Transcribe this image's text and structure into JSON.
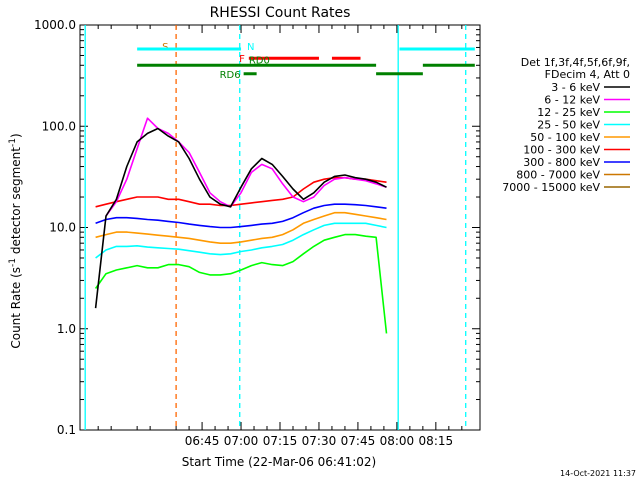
{
  "chart_data": {
    "type": "line",
    "title": "RHESSI Count Rates",
    "xlabel": "Start Time (22-Mar-06 06:41:02)",
    "ylabel_prefix": "Count Rate (s",
    "ylabel_sup": "-1",
    "ylabel_mid": " detector segment",
    "ylabel_sup2": "-1",
    "ylabel_suffix": ")",
    "yscale": "log",
    "ylim": [
      0.1,
      1000.0
    ],
    "xlim_minutes": [
      -4.5,
      19.0
    ],
    "x_ticks": [
      {
        "label": "06:45",
        "min": -15
      },
      {
        "label": "07:00",
        "min": 0
      },
      {
        "label": "07:15",
        "min": 15
      },
      {
        "label": "07:30",
        "min": 30
      },
      {
        "label": "07:45",
        "min": 45
      },
      {
        "label": "08:00",
        "min": 60
      },
      {
        "label": "08:15",
        "min": 75
      }
    ],
    "y_ticks": [
      {
        "label": "1000.0",
        "v": 1000
      },
      {
        "label": "100.0",
        "v": 100
      },
      {
        "label": "10.0",
        "v": 10
      },
      {
        "label": "1.0",
        "v": 1
      },
      {
        "label": "0.1",
        "v": 0.1
      }
    ],
    "legend_header": [
      "Det 1f,3f,4f,5f,6f,9f,",
      "FDecim 4, Att 0"
    ],
    "series": [
      {
        "name": "3 - 6 keV",
        "color": "#000000",
        "x": [
          -56,
          -52,
          -48,
          -44,
          -40,
          -36,
          -32,
          -28,
          -24,
          -20,
          -16,
          -12,
          -8,
          -4,
          0,
          4,
          8,
          12,
          16,
          20,
          24,
          28,
          32,
          36,
          40,
          44,
          48,
          52,
          56
        ],
        "values": [
          1.6,
          13,
          19,
          40,
          70,
          85,
          95,
          80,
          70,
          48,
          30,
          20,
          17,
          16,
          25,
          38,
          48,
          42,
          32,
          24,
          19,
          22,
          28,
          32,
          33,
          31,
          30,
          28,
          25
        ]
      },
      {
        "name": "6 - 12 keV",
        "color": "#ff00ff",
        "x": [
          -52,
          -48,
          -44,
          -40,
          -36,
          -32,
          -28,
          -24,
          -20,
          -16,
          -12,
          -8,
          -4,
          0,
          4,
          8,
          12,
          16,
          20,
          24,
          28,
          32,
          36,
          40,
          44,
          48,
          52,
          56
        ],
        "values": [
          13,
          18,
          30,
          60,
          120,
          95,
          85,
          70,
          55,
          35,
          22,
          18,
          16,
          22,
          35,
          42,
          38,
          27,
          20,
          18,
          20,
          26,
          30,
          31,
          30,
          29,
          27,
          25
        ]
      },
      {
        "name": "12 - 25 keV",
        "color": "#00ff00",
        "x": [
          -56,
          -52,
          -48,
          -44,
          -40,
          -36,
          -32,
          -28,
          -24,
          -20,
          -16,
          -12,
          -8,
          -4,
          0,
          4,
          8,
          12,
          16,
          20,
          24,
          28,
          32,
          36,
          40,
          44,
          48,
          52,
          56
        ],
        "values": [
          2.5,
          3.5,
          3.8,
          4.0,
          4.2,
          4.0,
          4.0,
          4.3,
          4.3,
          4.1,
          3.6,
          3.4,
          3.4,
          3.5,
          3.8,
          4.2,
          4.5,
          4.3,
          4.2,
          4.6,
          5.5,
          6.5,
          7.5,
          8.0,
          8.5,
          8.5,
          8.2,
          8.0,
          0.9
        ]
      },
      {
        "name": "25 - 50 keV",
        "color": "#00ffff",
        "x": [
          -56,
          -52,
          -48,
          -44,
          -40,
          -36,
          -32,
          -28,
          -24,
          -20,
          -16,
          -12,
          -8,
          -4,
          0,
          4,
          8,
          12,
          16,
          20,
          24,
          28,
          32,
          36,
          40,
          44,
          48,
          52,
          56
        ],
        "values": [
          5.0,
          6.0,
          6.5,
          6.5,
          6.6,
          6.4,
          6.3,
          6.2,
          6.1,
          5.9,
          5.7,
          5.5,
          5.4,
          5.5,
          5.8,
          6.0,
          6.3,
          6.5,
          6.8,
          7.5,
          8.5,
          9.5,
          10.5,
          11,
          11,
          11,
          11,
          10.5,
          10
        ]
      },
      {
        "name": "50 - 100 keV",
        "color": "#ff9900",
        "x": [
          -56,
          -52,
          -48,
          -44,
          -40,
          -36,
          -32,
          -28,
          -24,
          -20,
          -16,
          -12,
          -8,
          -4,
          0,
          4,
          8,
          12,
          16,
          20,
          24,
          28,
          32,
          36,
          40,
          44,
          48,
          52,
          56
        ],
        "values": [
          8.0,
          8.5,
          9.0,
          9.0,
          8.8,
          8.6,
          8.4,
          8.2,
          8.0,
          7.8,
          7.5,
          7.2,
          7.0,
          7.0,
          7.2,
          7.5,
          7.8,
          8.0,
          8.5,
          9.5,
          11,
          12,
          13,
          14,
          14,
          13.5,
          13,
          12.5,
          12
        ]
      },
      {
        "name": "100 - 300 keV",
        "color": "#ff0000",
        "x": [
          -56,
          -52,
          -48,
          -44,
          -40,
          -36,
          -32,
          -28,
          -24,
          -20,
          -16,
          -12,
          -8,
          -4,
          0,
          4,
          8,
          12,
          16,
          20,
          24,
          28,
          32,
          36,
          40,
          44,
          48,
          52,
          56
        ],
        "values": [
          16,
          17,
          18,
          19,
          20,
          20,
          20,
          19,
          19,
          18,
          17,
          17,
          16.5,
          16.5,
          17,
          17.5,
          18,
          18.5,
          19,
          20,
          24,
          28,
          30,
          31,
          31,
          30,
          30,
          29,
          28
        ]
      },
      {
        "name": "300 - 800 keV",
        "color": "#0000ff",
        "x": [
          -56,
          -52,
          -48,
          -44,
          -40,
          -36,
          -32,
          -28,
          -24,
          -20,
          -16,
          -12,
          -8,
          -4,
          0,
          4,
          8,
          12,
          16,
          20,
          24,
          28,
          32,
          36,
          40,
          44,
          48,
          52,
          56
        ],
        "values": [
          11,
          12,
          12.5,
          12.5,
          12.3,
          12,
          11.8,
          11.5,
          11.2,
          10.8,
          10.5,
          10.2,
          10,
          10,
          10.2,
          10.5,
          10.8,
          11,
          11.5,
          12.5,
          14,
          15.5,
          16.5,
          17,
          17,
          16.8,
          16.5,
          16,
          15.5
        ]
      },
      {
        "name": "800 - 7000 keV",
        "color": "#cc7700",
        "x": [],
        "values": []
      },
      {
        "name": "7000 - 15000 keV",
        "color": "#996600",
        "x": [],
        "values": []
      }
    ],
    "annotation_bars": [
      {
        "label": "S",
        "color": "#cc7700",
        "x0": -25,
        "x1": -25,
        "level": 620
      },
      {
        "label": "N",
        "color": "#00ffff",
        "x0": -40,
        "x1": 0,
        "level": 580
      },
      {
        "label": "N",
        "color": "#00ffff",
        "x0": 61,
        "x1": 90,
        "level": 580
      },
      {
        "label": "F",
        "color": "#ff0000",
        "x0": 3,
        "x1": 30,
        "level": 470
      },
      {
        "label": "",
        "color": "#ff0000",
        "x0": 35,
        "x1": 46,
        "level": 470
      },
      {
        "label": "RD0",
        "color": "#008000",
        "x0": -40,
        "x1": 52,
        "level": 400
      },
      {
        "label": "RD6",
        "color": "#008000",
        "x0": 1,
        "x1": 6,
        "level": 330
      },
      {
        "label": "",
        "color": "#008000",
        "x0": 52,
        "x1": 70,
        "level": 330
      },
      {
        "label": "",
        "color": "#008000",
        "x0": 70,
        "x1": 90,
        "level": 400
      }
    ],
    "vlines": [
      {
        "color": "#00ffff",
        "dash": false,
        "min": -4.5
      },
      {
        "color": "#ff6600",
        "dash": true,
        "min": -3.7
      },
      {
        "color": "#00ffff",
        "dash": true,
        "min": 0.0
      },
      {
        "color": "#00ffff",
        "dash": false,
        "min": 15.1
      },
      {
        "color": "#00ffff",
        "dash": true,
        "min": 18.6
      }
    ],
    "timestamp": "14-Oct-2021 11:37"
  }
}
